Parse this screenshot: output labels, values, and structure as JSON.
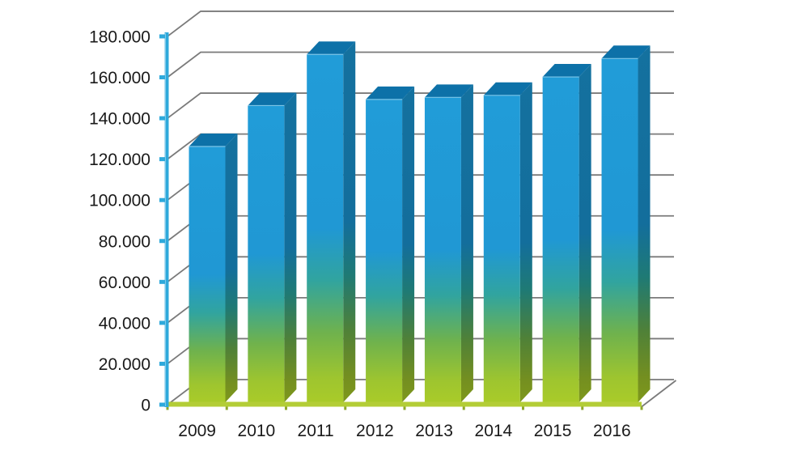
{
  "chart_data": {
    "type": "bar",
    "style": "3d-column",
    "categories": [
      "2009",
      "2010",
      "2011",
      "2012",
      "2013",
      "2014",
      "2015",
      "2016"
    ],
    "values": [
      125000,
      145000,
      170000,
      148000,
      149000,
      150000,
      159000,
      168000
    ],
    "y_tick_labels": [
      "0",
      "20.000",
      "40.000",
      "60.000",
      "80.000",
      "100.000",
      "120.000",
      "140.000",
      "160.000",
      "180.000"
    ],
    "y_tick_values": [
      0,
      20000,
      40000,
      60000,
      80000,
      100000,
      120000,
      140000,
      160000,
      180000
    ],
    "ylim": [
      0,
      180000
    ],
    "y_step": 20000,
    "xlabel": "",
    "ylabel": "",
    "grid": true,
    "legend": "none",
    "colors": {
      "background": "#FFFFFF",
      "bar_blue": "#1E9BD7",
      "bar_green": "#A9CB29",
      "bar_top_face": "#0D71A8",
      "bar_front_edge_highlight": "#7CC5E8",
      "axis_blue": "#2EA9DB",
      "axis_blue_highlight": "#9AD4EE",
      "floor_green": "#B3CD36",
      "floor_tick_green": "#8FA82B",
      "gridline_gray": "#7A7A7A",
      "text": "#1A1A1A",
      "front_gradient_stops": [
        [
          "0%",
          "#219CD8"
        ],
        [
          "50%",
          "#2098D4"
        ],
        [
          "65%",
          "#31A49F"
        ],
        [
          "80%",
          "#6FB24D"
        ],
        [
          "93%",
          "#9EC52F"
        ],
        [
          "100%",
          "#A9CB29"
        ]
      ],
      "side_gradient_stops": [
        [
          "0%",
          "#14719F"
        ],
        [
          "50%",
          "#136E9C"
        ],
        [
          "65%",
          "#1F7A74"
        ],
        [
          "80%",
          "#4F8138"
        ],
        [
          "93%",
          "#748F20"
        ],
        [
          "100%",
          "#7E981C"
        ]
      ]
    }
  }
}
